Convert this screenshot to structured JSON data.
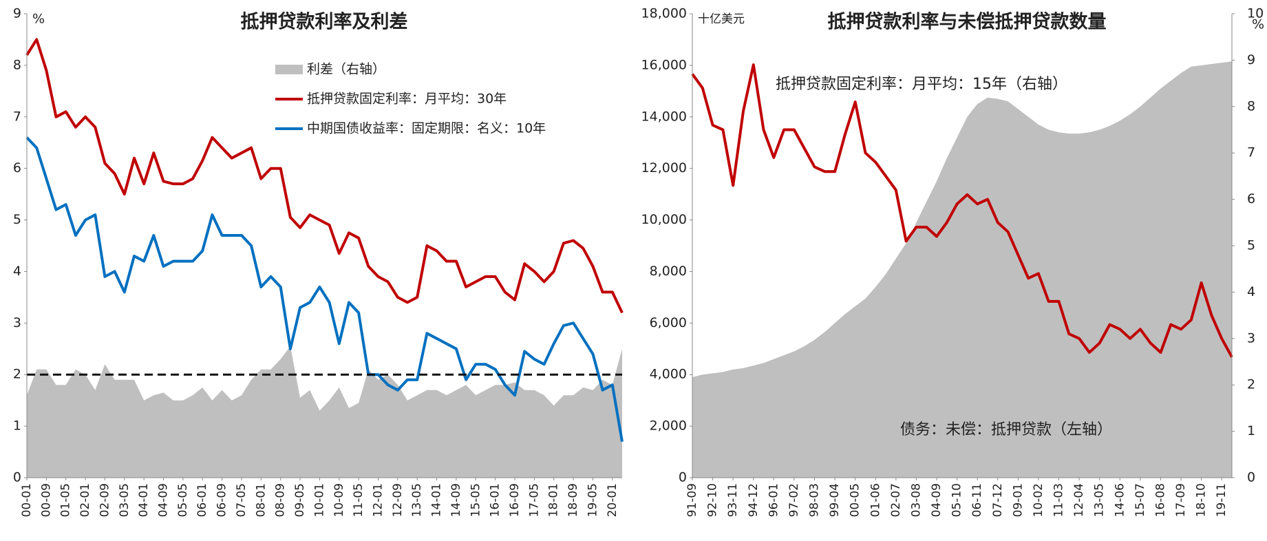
{
  "chart_data": [
    {
      "type": "line",
      "title": "抵押贷款利率及利差",
      "y_unit": "%",
      "categories": [
        "00-01",
        null,
        "00-09",
        null,
        "01-05",
        null,
        "02-01",
        null,
        "02-09",
        null,
        "03-05",
        null,
        "04-01",
        null,
        "04-09",
        null,
        "05-05",
        null,
        "06-01",
        null,
        "06-09",
        null,
        "07-05",
        null,
        "08-01",
        null,
        "08-09",
        null,
        "09-05",
        null,
        "10-01",
        null,
        "10-09",
        null,
        "11-05",
        null,
        "12-01",
        null,
        "12-09",
        null,
        "13-05",
        null,
        "14-01",
        null,
        "14-09",
        null,
        "15-05",
        null,
        "16-01",
        null,
        "16-09",
        null,
        "17-05",
        null,
        "18-01",
        null,
        "18-09",
        null,
        "19-05",
        null,
        "20-01",
        null
      ],
      "series": [
        {
          "name": "利差（右轴）",
          "color": "#bfbfbf",
          "type": "area",
          "values": [
            1.6,
            2.1,
            2.1,
            1.8,
            1.8,
            2.1,
            2.0,
            1.7,
            2.2,
            1.9,
            1.9,
            1.9,
            1.5,
            1.6,
            1.65,
            1.5,
            1.5,
            1.6,
            1.75,
            1.5,
            1.7,
            1.5,
            1.6,
            1.9,
            2.1,
            2.1,
            2.3,
            2.55,
            1.55,
            1.7,
            1.3,
            1.5,
            1.75,
            1.35,
            1.45,
            2.1,
            1.9,
            2.0,
            1.8,
            1.5,
            1.6,
            1.7,
            1.7,
            1.6,
            1.7,
            1.8,
            1.6,
            1.7,
            1.8,
            1.8,
            1.85,
            1.7,
            1.7,
            1.6,
            1.4,
            1.6,
            1.6,
            1.75,
            1.7,
            1.9,
            1.8,
            2.5
          ]
        },
        {
          "name": "抵押贷款固定利率：月平均：30年",
          "color": "#c00000",
          "type": "line",
          "values": [
            8.2,
            8.5,
            7.9,
            7.0,
            7.1,
            6.8,
            7.0,
            6.8,
            6.1,
            5.9,
            5.5,
            6.2,
            5.7,
            6.3,
            5.75,
            5.7,
            5.7,
            5.8,
            6.15,
            6.6,
            6.4,
            6.2,
            6.3,
            6.4,
            5.8,
            6.0,
            6.0,
            5.05,
            4.85,
            5.1,
            5.0,
            4.9,
            4.35,
            4.75,
            4.65,
            4.1,
            3.9,
            3.8,
            3.5,
            3.4,
            3.5,
            4.5,
            4.4,
            4.2,
            4.2,
            3.7,
            3.8,
            3.9,
            3.9,
            3.6,
            3.45,
            4.15,
            4.0,
            3.8,
            4.0,
            4.55,
            4.6,
            4.45,
            4.1,
            3.6,
            3.6,
            3.2
          ]
        },
        {
          "name": "中期国债收益率：固定期限：名义：10年",
          "color": "#0070c0",
          "type": "line",
          "values": [
            6.6,
            6.4,
            5.8,
            5.2,
            5.3,
            4.7,
            5.0,
            5.1,
            3.9,
            4.0,
            3.6,
            4.3,
            4.2,
            4.7,
            4.1,
            4.2,
            4.2,
            4.2,
            4.4,
            5.1,
            4.7,
            4.7,
            4.7,
            4.5,
            3.7,
            3.9,
            3.7,
            2.5,
            3.3,
            3.4,
            3.7,
            3.4,
            2.6,
            3.4,
            3.2,
            2.0,
            2.0,
            1.8,
            1.7,
            1.9,
            1.9,
            2.8,
            2.7,
            2.6,
            2.5,
            1.9,
            2.2,
            2.2,
            2.1,
            1.8,
            1.6,
            2.45,
            2.3,
            2.2,
            2.6,
            2.95,
            3.0,
            2.7,
            2.4,
            1.7,
            1.8,
            0.7
          ]
        }
      ],
      "ylim": [
        0,
        9
      ],
      "yticks": [
        0,
        1,
        2,
        3,
        4,
        5,
        6,
        7,
        8,
        9
      ],
      "reference_line": 2,
      "legend": "top-right"
    },
    {
      "type": "line",
      "title": "抵押贷款利率与未偿抵押贷款数量",
      "y_unit": "十亿美元",
      "y2_unit": "%",
      "categories": [
        "91-09",
        null,
        "92-10",
        null,
        "93-11",
        null,
        "94-12",
        null,
        "96-01",
        null,
        "97-02",
        null,
        "98-03",
        null,
        "99-04",
        null,
        "00-05",
        null,
        "01-06",
        null,
        "02-07",
        null,
        "03-08",
        null,
        "04-09",
        null,
        "05-10",
        null,
        "06-11",
        null,
        "07-12",
        null,
        "09-01",
        null,
        "10-02",
        null,
        "11-03",
        null,
        "12-04",
        null,
        "13-05",
        null,
        "14-06",
        null,
        "15-07",
        null,
        "16-08",
        null,
        "17-09",
        null,
        "18-10",
        null,
        "19-11",
        null
      ],
      "series": [
        {
          "name": "债务：未偿：抵押贷款（左轴）",
          "color": "#bfbfbf",
          "type": "area",
          "values": [
            3900,
            4000,
            4050,
            4100,
            4200,
            4250,
            4350,
            4450,
            4600,
            4750,
            4900,
            5100,
            5350,
            5650,
            6000,
            6350,
            6650,
            6950,
            7400,
            7900,
            8500,
            9100,
            9900,
            10700,
            11500,
            12400,
            13200,
            14000,
            14500,
            14750,
            14700,
            14600,
            14300,
            14000,
            13700,
            13500,
            13400,
            13350,
            13350,
            13400,
            13500,
            13650,
            13850,
            14100,
            14400,
            14750,
            15100,
            15400,
            15700,
            15950,
            16000,
            16050,
            16100,
            16150
          ]
        },
        {
          "name": "抵押贷款固定利率：月平均：15年（右轴）",
          "color": "#c00000",
          "type": "line",
          "axis": "y2",
          "values": [
            8.7,
            8.4,
            7.6,
            7.5,
            6.3,
            7.9,
            8.9,
            7.5,
            6.9,
            7.5,
            7.5,
            7.1,
            6.7,
            6.6,
            6.6,
            7.4,
            8.1,
            7.0,
            6.8,
            6.5,
            6.2,
            5.1,
            5.4,
            5.4,
            5.2,
            5.5,
            5.9,
            6.1,
            5.9,
            6.0,
            5.5,
            5.3,
            4.8,
            4.3,
            4.4,
            3.8,
            3.8,
            3.1,
            3.0,
            2.7,
            2.9,
            3.3,
            3.2,
            3.0,
            3.2,
            2.9,
            2.7,
            3.3,
            3.2,
            3.4,
            4.2,
            3.5,
            3.0,
            2.6
          ]
        }
      ],
      "ylim": [
        0,
        18000
      ],
      "yticks": [
        0,
        {
          "value": 2000,
          "label": "2,000"
        },
        {
          "value": 4000,
          "label": "4,000"
        },
        {
          "value": 6000,
          "label": "6,000"
        },
        {
          "value": 8000,
          "label": "8,000"
        },
        {
          "value": 10000,
          "label": "10,000"
        },
        {
          "value": 12000,
          "label": "12,000"
        },
        {
          "value": 14000,
          "label": "14,000"
        },
        {
          "value": 16000,
          "label": "16,000"
        },
        {
          "value": 18000,
          "label": "18,000"
        }
      ],
      "y2lim": [
        0,
        10
      ],
      "y2ticks": [
        0,
        1,
        2,
        3,
        4,
        5,
        6,
        7,
        8,
        9,
        10
      ],
      "y2_color": "#c00000"
    }
  ]
}
